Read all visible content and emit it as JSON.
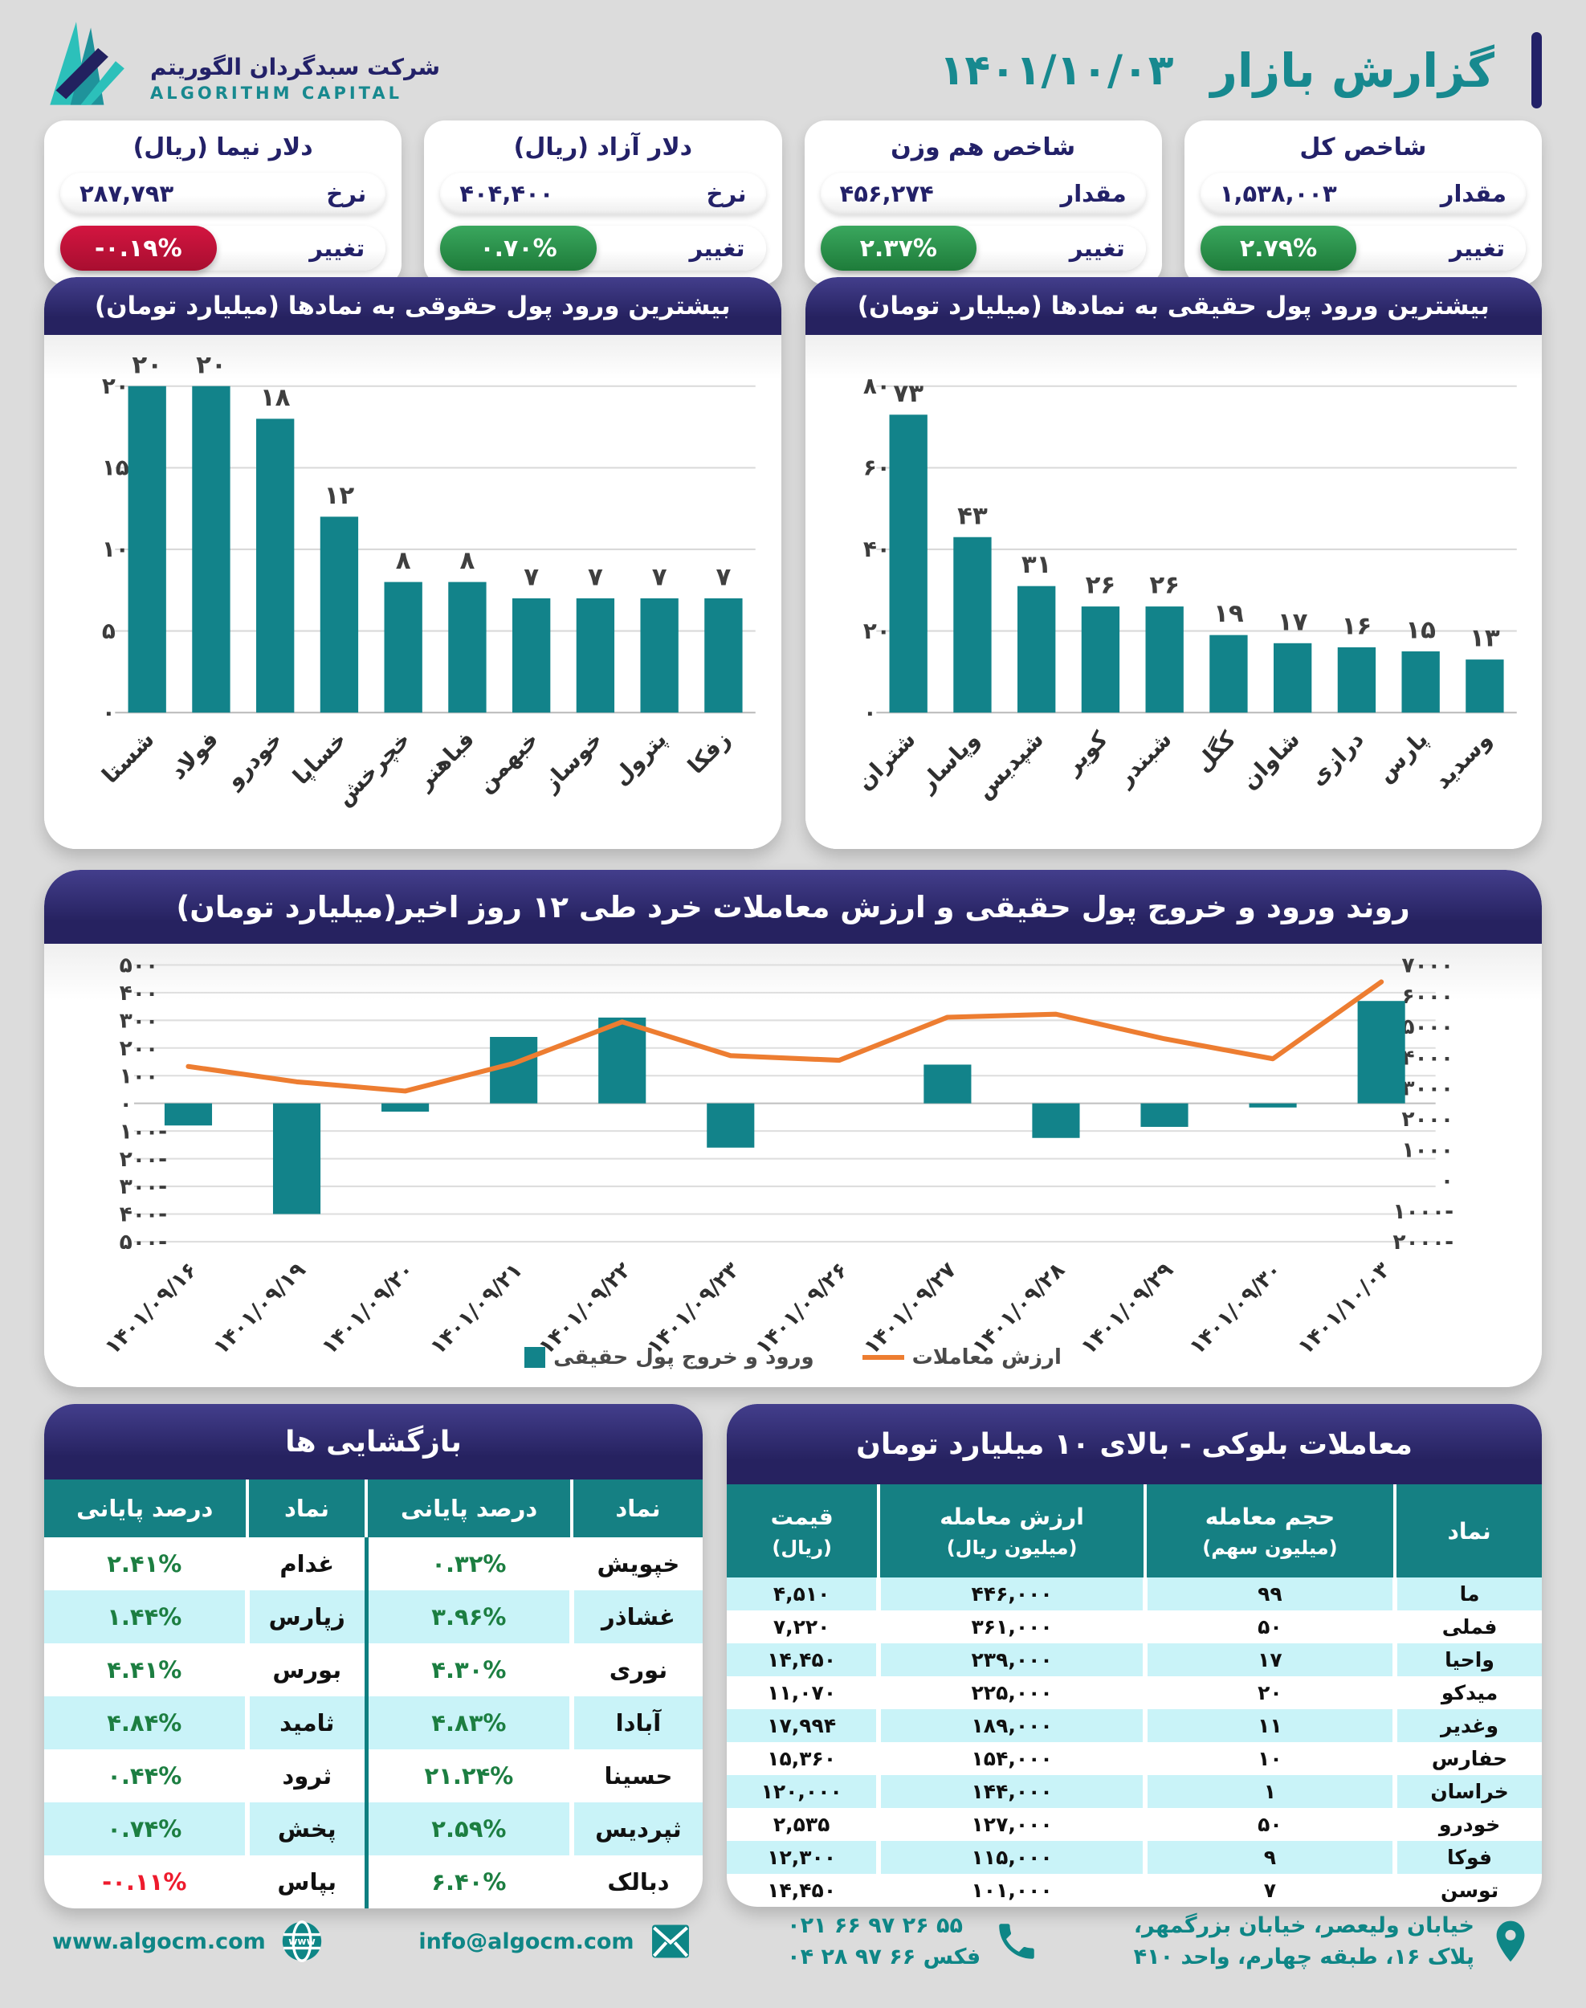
{
  "header": {
    "brand_fa": "شرکت سبدگردان الگوریتم",
    "brand_en": "ALGORITHM CAPITAL",
    "title": "گزارش بازار",
    "date": "۱۴۰۱/۱۰/۰۳"
  },
  "stat_cards": [
    {
      "title": "شاخص کل",
      "value_label": "مقدار",
      "value": "۱,۵۳۸,۰۰۳",
      "change_label": "تغییر",
      "change": "۲.۷۹%",
      "direction": "up"
    },
    {
      "title": "شاخص هم وزن",
      "value_label": "مقدار",
      "value": "۴۵۶,۲۷۴",
      "change_label": "تغییر",
      "change": "۲.۳۷%",
      "direction": "up"
    },
    {
      "title": "دلار آزاد (ریال)",
      "value_label": "نرخ",
      "value": "۴۰۴,۴۰۰",
      "change_label": "تغییر",
      "change": "۰.۷۰%",
      "direction": "up"
    },
    {
      "title": "دلار نیما (ریال)",
      "value_label": "نرخ",
      "value": "۲۸۷,۷۹۳",
      "change_label": "تغییر",
      "change": "-۰.۱۹%",
      "direction": "down"
    }
  ],
  "chart_data": [
    {
      "type": "bar",
      "title": "بیشترین ورود پول حقیقی به نمادها (میلیارد تومان)",
      "categories": [
        "شتران",
        "وپاسار",
        "شپدیس",
        "کویر",
        "شبندر",
        "کگل",
        "شاوان",
        "درازی",
        "پارس",
        "وسدید"
      ],
      "values": [
        73,
        43,
        31,
        26,
        26,
        19,
        17,
        16,
        15,
        13
      ],
      "ylim": [
        0,
        80
      ],
      "ytick_step": 20,
      "bar_color": "#12838a",
      "grid": true
    },
    {
      "type": "bar",
      "title": "بیشترین ورود پول حقوقی به نمادها (میلیارد تومان)",
      "categories": [
        "شستا",
        "فولاد",
        "خودرو",
        "خساپا",
        "خچرخش",
        "فباهنر",
        "خبهمن",
        "خوساز",
        "پترول",
        "زفکا"
      ],
      "values": [
        20,
        20,
        18,
        12,
        8,
        8,
        7,
        7,
        7,
        7
      ],
      "ylim": [
        0,
        20
      ],
      "ytick_step": 5,
      "bar_color": "#12838a",
      "grid": true
    },
    {
      "type": "combo",
      "title": "روند ورود و خروج پول حقیقی و ارزش معاملات خرد طی ۱۲ روز اخیر(میلیارد تومان)",
      "categories": [
        "۱۴۰۱/۰۹/۱۶",
        "۱۴۰۱/۰۹/۱۹",
        "۱۴۰۱/۰۹/۲۰",
        "۱۴۰۱/۰۹/۲۱",
        "۱۴۰۱/۰۹/۲۲",
        "۱۴۰۱/۰۹/۲۳",
        "۱۴۰۱/۰۹/۲۶",
        "۱۴۰۱/۰۹/۲۷",
        "۱۴۰۱/۰۹/۲۸",
        "۱۴۰۱/۰۹/۲۹",
        "۱۴۰۱/۰۹/۳۰",
        "۱۴۰۱/۱۰/۰۳"
      ],
      "series": [
        {
          "name": "ورود و خروج پول حقیقی",
          "type": "bar",
          "axis": "left",
          "values": [
            -80,
            -400,
            -30,
            240,
            310,
            -160,
            0,
            140,
            -125,
            -85,
            -15,
            370
          ]
        },
        {
          "name": "ارزش معاملات",
          "type": "line",
          "axis": "right",
          "values": [
            3700,
            3200,
            2900,
            3800,
            5150,
            4050,
            3900,
            5300,
            5400,
            4600,
            3950,
            6450
          ]
        }
      ],
      "left_axis": {
        "min": -500,
        "max": 500,
        "step": 100
      },
      "right_axis": {
        "min": -2000,
        "max": 7000,
        "step": 1000
      },
      "colors": {
        "bar": "#12838a",
        "line": "#ed7d31"
      },
      "legend_position": "bottom"
    }
  ],
  "reopen_table": {
    "title": "بازگشایی ها",
    "col_symbol": "نماد",
    "col_pct": "درصد پایانی",
    "rows": [
      [
        "خپویش",
        "۰.۳۲%",
        "غدام",
        "۲.۴۱%"
      ],
      [
        "غشاذر",
        "۳.۹۶%",
        "زپارس",
        "۱.۴۴%"
      ],
      [
        "نوری",
        "۴.۳۰%",
        "بورس",
        "۴.۴۱%"
      ],
      [
        "آبادا",
        "۴.۸۳%",
        "ثامید",
        "۴.۸۴%"
      ],
      [
        "حسینا",
        "۲۱.۲۴%",
        "ثرود",
        "۰.۴۴%"
      ],
      [
        "ثپردیس",
        "۲.۵۹%",
        "پخش",
        "۰.۷۴%"
      ],
      [
        "دبالک",
        "۶.۴۰%",
        "بپاس",
        "-۰.۱۱%"
      ]
    ]
  },
  "block_table": {
    "title": "معاملات بلوکی - بالای ۱۰ میلیارد تومان",
    "headers": [
      {
        "line1": "نماد",
        "line2": ""
      },
      {
        "line1": "حجم معامله",
        "line2": "(میلیون سهم)"
      },
      {
        "line1": "ارزش معامله",
        "line2": "(میلیون ریال)"
      },
      {
        "line1": "قیمت",
        "line2": "(ریال)"
      }
    ],
    "rows": [
      [
        "ما",
        "۹۹",
        "۴۴۶,۰۰۰",
        "۴,۵۱۰"
      ],
      [
        "فملی",
        "۵۰",
        "۳۶۱,۰۰۰",
        "۷,۲۲۰"
      ],
      [
        "واحیا",
        "۱۷",
        "۲۳۹,۰۰۰",
        "۱۴,۴۵۰"
      ],
      [
        "میدکو",
        "۲۰",
        "۲۲۵,۰۰۰",
        "۱۱,۰۷۰"
      ],
      [
        "وغدیر",
        "۱۱",
        "۱۸۹,۰۰۰",
        "۱۷,۹۹۴"
      ],
      [
        "حفارس",
        "۱۰",
        "۱۵۴,۰۰۰",
        "۱۵,۳۶۰"
      ],
      [
        "خراسان",
        "۱",
        "۱۴۴,۰۰۰",
        "۱۲۰,۰۰۰"
      ],
      [
        "خودرو",
        "۵۰",
        "۱۲۷,۰۰۰",
        "۲,۵۳۵"
      ],
      [
        "فوکا",
        "۹",
        "۱۱۵,۰۰۰",
        "۱۲,۳۰۰"
      ],
      [
        "توسن",
        "۷",
        "۱۰۱,۰۰۰",
        "۱۴,۴۵۰"
      ]
    ]
  },
  "footer": {
    "website": "www.algocm.com",
    "email": "info@algocm.com",
    "phone1": "۰۲۱ ۶۶ ۹۷ ۲۶ ۵۵",
    "phone2": "فکس ۶۶ ۹۷ ۲۸ ۰۴",
    "address1": "خیابان ولیعصر، خیابان بزرگمهر،",
    "address2": "پلاک ۱۶، طبقه چهارم، واحد ۴۱۰"
  },
  "colors": {
    "teal": "#12838a",
    "navy": "#232168",
    "green": "#1e7c3a",
    "red": "#c11236",
    "orange": "#ed7d31",
    "row_cyan": "#c9f3f8",
    "table_header_teal": "#158083"
  }
}
